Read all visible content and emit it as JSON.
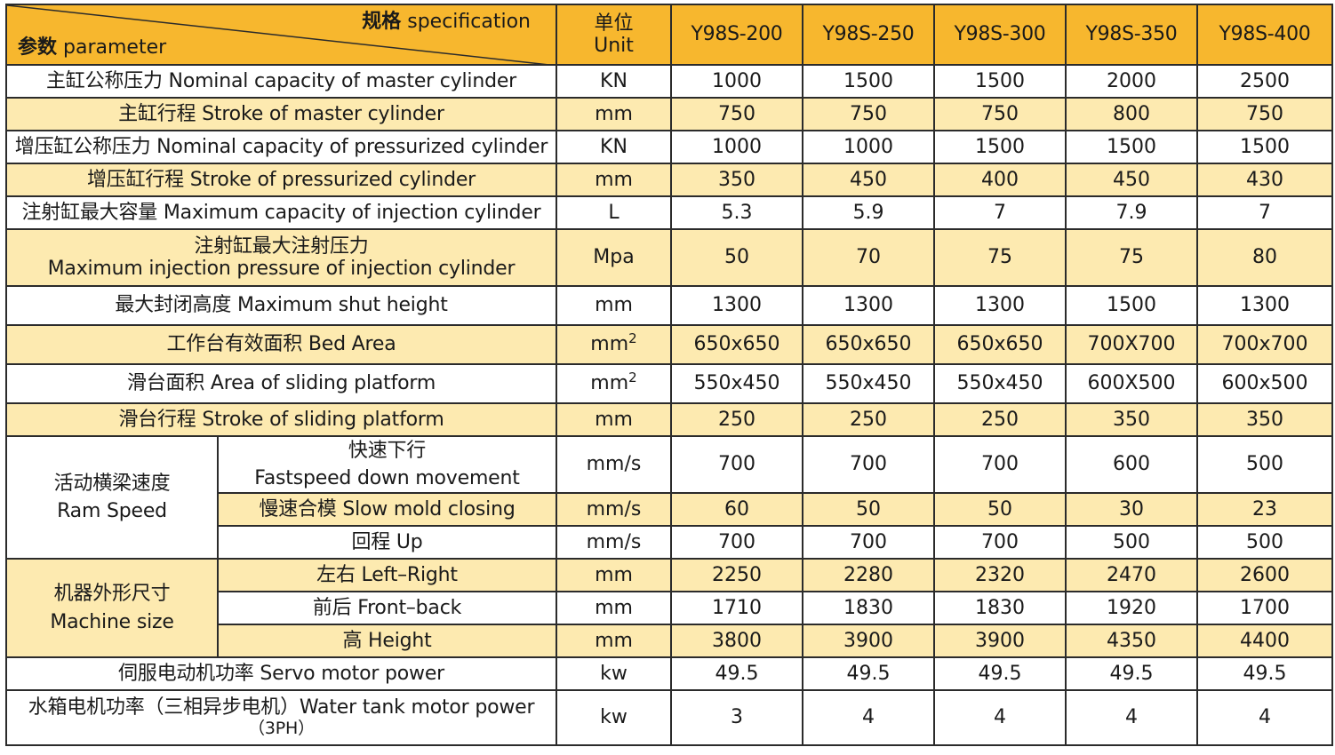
{
  "header": {
    "spec_cn": "规格",
    "spec_en": "specification",
    "param_cn": "参数",
    "param_en": "parameter",
    "unit_cn": "单位",
    "unit_en": "Unit",
    "models": [
      "Y98S-200",
      "Y98S-250",
      "Y98S-300",
      "Y98S-350",
      "Y98S-400"
    ]
  },
  "rows": {
    "r1": {
      "label": "主缸公称压力 Nominal capacity of master cylinder",
      "unit": "KN",
      "values": [
        "1000",
        "1500",
        "1500",
        "2000",
        "2500"
      ]
    },
    "r2": {
      "label": "主缸行程 Stroke of master cylinder",
      "unit": "mm",
      "values": [
        "750",
        "750",
        "750",
        "800",
        "750"
      ]
    },
    "r3": {
      "label": "增压缸公称压力 Nominal capacity of pressurized cylinder",
      "unit": "KN",
      "values": [
        "1000",
        "1000",
        "1500",
        "1500",
        "1500"
      ]
    },
    "r4": {
      "label": "增压缸行程 Stroke of pressurized cylinder",
      "unit": "mm",
      "values": [
        "350",
        "450",
        "400",
        "450",
        "430"
      ]
    },
    "r5": {
      "label": "注射缸最大容量 Maximum capacity of injection cylinder",
      "unit": "L",
      "values": [
        "5.3",
        "5.9",
        "7",
        "7.9",
        "7"
      ]
    },
    "r6": {
      "label_cn": "注射缸最大注射压力",
      "label_en": "Maximum injection pressure of injection cylinder",
      "unit": "Mpa",
      "values": [
        "50",
        "70",
        "75",
        "75",
        "80"
      ]
    },
    "r7": {
      "label": "最大封闭高度 Maximum shut height",
      "unit": "mm",
      "values": [
        "1300",
        "1300",
        "1300",
        "1500",
        "1300"
      ]
    },
    "r8": {
      "label": "工作台有效面积 Bed Area",
      "unit": "mm",
      "unit_sup": "2",
      "values": [
        "650x650",
        "650x650",
        "650x650",
        "700X700",
        "700x700"
      ]
    },
    "r9": {
      "label": "滑台面积 Area of sliding platform",
      "unit": "mm",
      "unit_sup": "2",
      "values": [
        "550x450",
        "550x450",
        "550x450",
        "600X500",
        "600x500"
      ]
    },
    "r10": {
      "label": "滑台行程 Stroke of sliding platform",
      "unit": "mm",
      "values": [
        "250",
        "250",
        "250",
        "350",
        "350"
      ]
    },
    "ram": {
      "group_cn": "活动横梁速度",
      "group_en": "Ram Speed",
      "fast": {
        "label_cn": "快速下行",
        "label_en": "Fastspeed down movement",
        "unit": "mm/s",
        "values": [
          "700",
          "700",
          "700",
          "600",
          "500"
        ]
      },
      "slow": {
        "label": "慢速合模 Slow mold closing",
        "unit": "mm/s",
        "values": [
          "60",
          "50",
          "50",
          "30",
          "23"
        ]
      },
      "up": {
        "label": "回程 Up",
        "unit": "mm/s",
        "values": [
          "700",
          "700",
          "700",
          "500",
          "500"
        ]
      }
    },
    "size": {
      "group_cn": "机器外形尺寸",
      "group_en": "Machine size",
      "lr": {
        "label": "左右 Left–Right",
        "unit": "mm",
        "values": [
          "2250",
          "2280",
          "2320",
          "2470",
          "2600"
        ]
      },
      "fb": {
        "label": "前后 Front–back",
        "unit": "mm",
        "values": [
          "1710",
          "1830",
          "1830",
          "1920",
          "1700"
        ]
      },
      "h": {
        "label": "高 Height",
        "unit": "mm",
        "values": [
          "3800",
          "3900",
          "3900",
          "4350",
          "4400"
        ]
      }
    },
    "r11": {
      "label": "伺服电动机功率 Servo motor power",
      "unit": "kw",
      "values": [
        "49.5",
        "49.5",
        "49.5",
        "49.5",
        "49.5"
      ]
    },
    "r12": {
      "label_1": "水箱电机功率（三相异步电机）Water tank motor power",
      "label_2": "（3PH）",
      "unit": "kw",
      "values": [
        "3",
        "4",
        "4",
        "4",
        "4"
      ]
    }
  }
}
